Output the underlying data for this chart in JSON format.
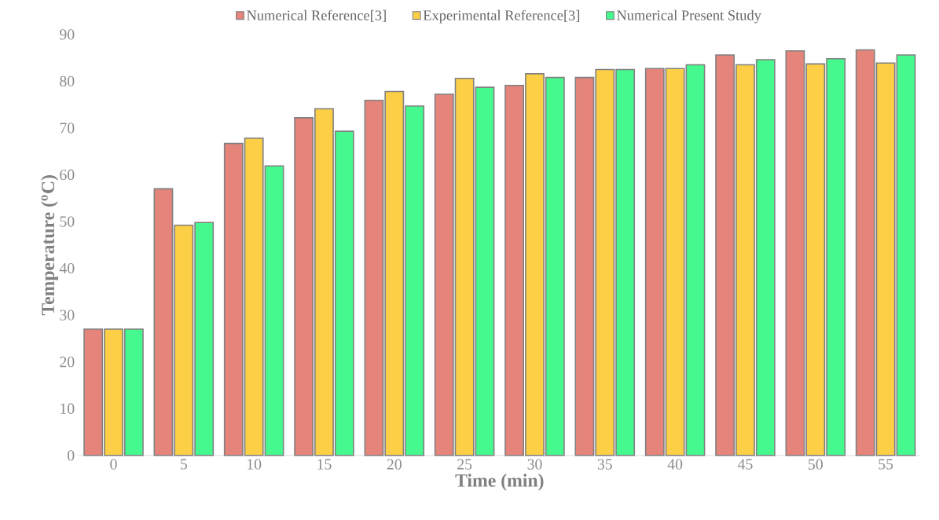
{
  "chart_data": {
    "type": "bar",
    "xlabel": "Time (min)",
    "ylabel": "Temperature ($^{o}$C)",
    "categories": [
      "0",
      "5",
      "10",
      "15",
      "20",
      "25",
      "30",
      "35",
      "40",
      "45",
      "50",
      "55"
    ],
    "series": [
      {
        "name": "Numerical Reference[3]",
        "color": "#e4847a",
        "values": [
          27,
          57,
          66.7,
          72.2,
          75.9,
          77.2,
          79.1,
          80.8,
          82.7,
          85.6,
          86.5,
          86.7
        ]
      },
      {
        "name": "Experimental Reference[3]",
        "color": "#fccf46",
        "values": [
          27,
          49.2,
          67.8,
          74.1,
          77.8,
          80.6,
          81.6,
          82.5,
          82.7,
          83.5,
          83.7,
          83.9
        ]
      },
      {
        "name": "Numerical Present Study",
        "color": "#46f98f",
        "values": [
          27,
          49.8,
          61.9,
          69.3,
          74.7,
          78.7,
          80.8,
          82.5,
          83.5,
          84.6,
          84.8,
          85.6
        ]
      }
    ],
    "ylim": [
      0,
      90
    ],
    "yticks": [
      0,
      10,
      20,
      30,
      40,
      50,
      60,
      70,
      80,
      90
    ],
    "grid": false,
    "legend": "top"
  }
}
